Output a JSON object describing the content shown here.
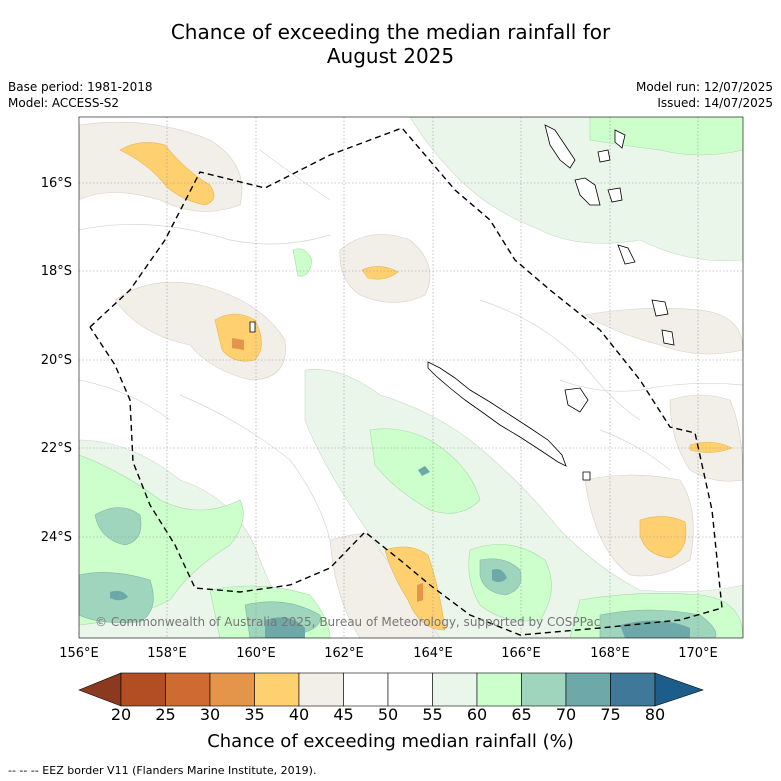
{
  "title": {
    "line1": "Chance of exceeding the median rainfall for",
    "line2": "August 2025"
  },
  "meta": {
    "base_period": "Base period: 1981-2018",
    "model": "Model: ACCESS-S2",
    "model_run": "Model run: 12/07/2025",
    "issued": "Issued: 14/07/2025"
  },
  "axes": {
    "longitudes": [
      "156°E",
      "158°E",
      "160°E",
      "162°E",
      "164°E",
      "166°E",
      "168°E",
      "170°E"
    ],
    "latitudes": [
      "16°S",
      "18°S",
      "20°S",
      "22°S",
      "24°S"
    ]
  },
  "copyright": "© Commonwealth of Australia 2025, Bureau of Meteorology, supported by COSPPac",
  "colorbar": {
    "title": "Chance of exceeding median rainfall (%)",
    "ticks": [
      "20",
      "25",
      "30",
      "35",
      "40",
      "45",
      "50",
      "55",
      "60",
      "65",
      "70",
      "75",
      "80"
    ],
    "colors": [
      "#8c3a1f",
      "#b34d22",
      "#cf6a32",
      "#e4954a",
      "#ffd070",
      "#f2eee8",
      "#ffffff",
      "#ffffff",
      "#eaf6ea",
      "#ccffcc",
      "#9fd4bd",
      "#6ea8a8",
      "#3f7898",
      "#1d5d8c"
    ]
  },
  "footer": "-- -- -- EEZ border V11 (Flanders Marine Institute, 2019).",
  "icons": {
    "eez_border": "dashed-line",
    "coastline": "outline"
  }
}
